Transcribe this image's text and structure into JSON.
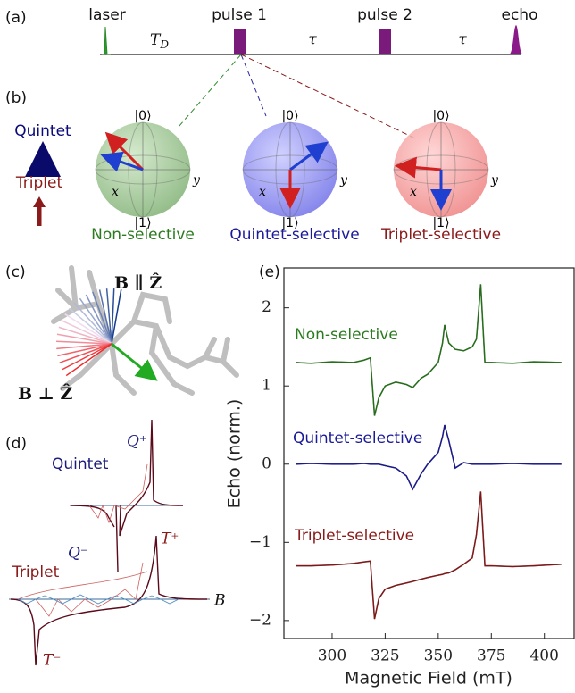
{
  "panel_a": {
    "label": "(a)",
    "laser": "laser",
    "pulse1": "pulse 1",
    "pulse2": "pulse 2",
    "echo": "echo",
    "delay": "T",
    "delay_sub": "D",
    "tau1": "τ",
    "tau2": "τ"
  },
  "panel_b": {
    "label": "(b)",
    "quintet": "Quintet",
    "triplet": "Triplet",
    "spheres": [
      {
        "top": "|0⟩",
        "bottom": "|1⟩",
        "x": "x",
        "y": "y",
        "caption": "Non-selective"
      },
      {
        "top": "|0⟩",
        "bottom": "|1⟩",
        "x": "x",
        "y": "y",
        "caption": "Quintet-selective"
      },
      {
        "top": "|0⟩",
        "bottom": "|1⟩",
        "x": "x",
        "y": "y",
        "caption": "Triplet-selective"
      }
    ]
  },
  "panel_c": {
    "label": "(c)",
    "parallel": "B ∥ Ẑ",
    "perpendicular": "B ⊥ Ẑ"
  },
  "panel_d": {
    "label": "(d)",
    "quintet": "Quintet",
    "triplet": "Triplet",
    "q_plus": "Q⁺",
    "q_minus": "Q⁻",
    "t_plus": "T⁺",
    "t_minus": "T⁻",
    "field": "B"
  },
  "panel_e": {
    "label": "(e)"
  },
  "chart_data": {
    "type": "line",
    "xlabel": "Magnetic Field (mT)",
    "ylabel": "Echo (norm.)",
    "xlim": [
      277.3,
      414
    ],
    "ylim": [
      -2.23,
      2.51
    ],
    "xticks": [
      300,
      325,
      350,
      375,
      400
    ],
    "yticks": [
      {
        "value": -2,
        "label": "−2"
      },
      {
        "value": -1,
        "label": "−1"
      },
      0,
      1,
      2
    ],
    "x": [
      283,
      290,
      300,
      310,
      315,
      318,
      320,
      322,
      325,
      330,
      335,
      338,
      342,
      345,
      350,
      352,
      353,
      355,
      358,
      362,
      366,
      368,
      370,
      372,
      375,
      385,
      395,
      408
    ],
    "series": [
      {
        "name": "Non-selective",
        "color": "#2a7a1e",
        "values": [
          1.3,
          1.29,
          1.31,
          1.3,
          1.33,
          1.36,
          0.62,
          0.85,
          1.0,
          1.05,
          1.02,
          0.98,
          1.1,
          1.15,
          1.3,
          1.55,
          1.78,
          1.55,
          1.47,
          1.45,
          1.5,
          1.6,
          2.3,
          1.3,
          1.3,
          1.29,
          1.31,
          1.3
        ]
      },
      {
        "name": "Quintet-selective",
        "color": "#1b1b9a",
        "values": [
          0.0,
          0.01,
          0.0,
          0.0,
          0.01,
          0.0,
          0.0,
          0.0,
          -0.02,
          -0.05,
          -0.15,
          -0.32,
          -0.12,
          0.0,
          0.15,
          0.35,
          0.5,
          0.3,
          -0.05,
          0.02,
          0.0,
          0.0,
          0.0,
          0.0,
          0.0,
          0.01,
          0.0,
          0.0
        ]
      },
      {
        "name": "Triplet-selective",
        "color": "#8b1a1a",
        "values": [
          -1.3,
          -1.3,
          -1.29,
          -1.27,
          -1.25,
          -1.24,
          -1.98,
          -1.72,
          -1.6,
          -1.55,
          -1.52,
          -1.5,
          -1.47,
          -1.45,
          -1.42,
          -1.41,
          -1.4,
          -1.39,
          -1.35,
          -1.28,
          -1.2,
          -0.9,
          -0.35,
          -1.3,
          -1.3,
          -1.31,
          -1.3,
          -1.28
        ]
      }
    ]
  }
}
